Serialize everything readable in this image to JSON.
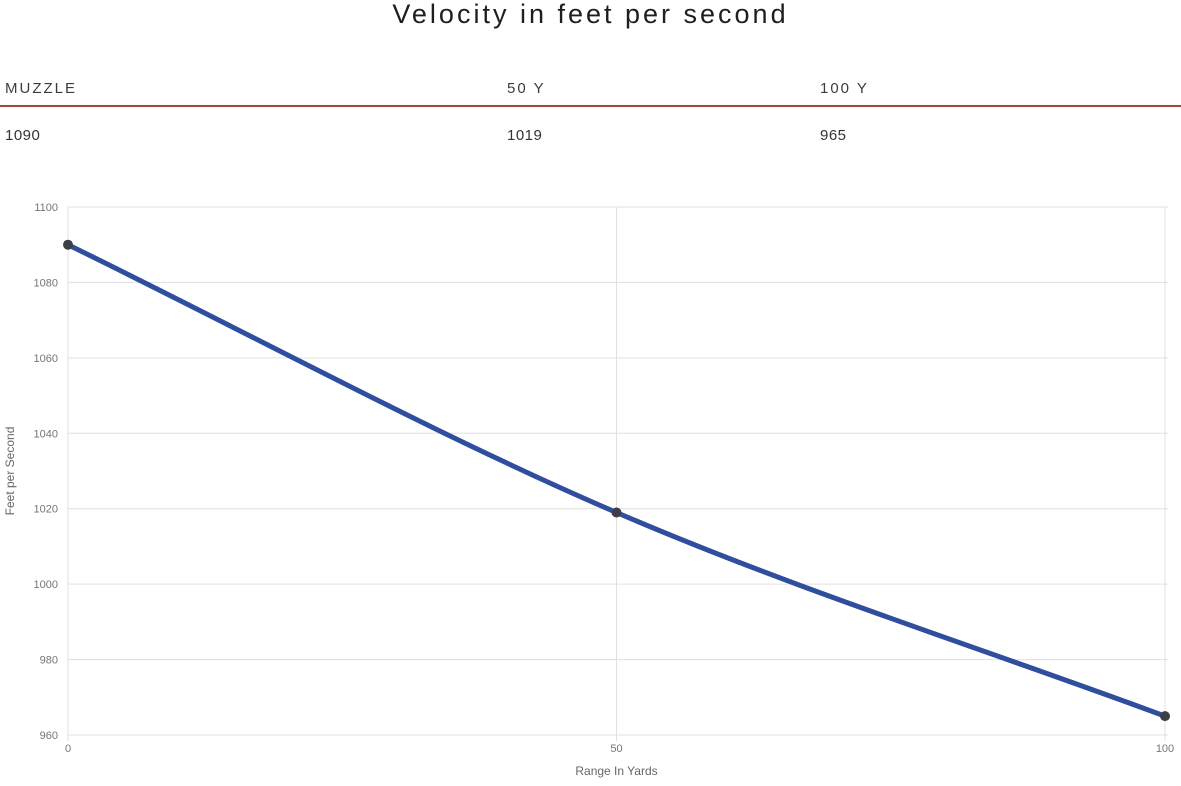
{
  "title": "Velocity in feet per second",
  "table": {
    "headers": [
      "MUZZLE",
      "50 Y",
      "100 Y"
    ],
    "values": [
      "1090",
      "1019",
      "965"
    ]
  },
  "chart_data": {
    "type": "line",
    "title": "Velocity in feet per second",
    "x": [
      0,
      50,
      100
    ],
    "series": [
      {
        "name": "Velocity",
        "values": [
          1090,
          1019,
          965
        ]
      }
    ],
    "xlabel": "Range In Yards",
    "ylabel": "Feet per Second",
    "xticks": [
      0,
      50,
      100
    ],
    "yticks": [
      960,
      980,
      1000,
      1020,
      1040,
      1060,
      1080,
      1100
    ],
    "xlim": [
      0,
      100
    ],
    "ylim": [
      960,
      1100
    ],
    "grid": true,
    "legend": "none",
    "line_color": "#2f4e9e",
    "marker_color": "#3b4045"
  },
  "colors": {
    "background": "#ffffff",
    "title_text": "#1e1e1e",
    "header_rule": "#a04a3a",
    "table_header_text": "#3c3c3c",
    "table_value_text": "#333333",
    "grid_line": "#e0e0e0",
    "tick_label": "#757575",
    "axis_title": "#666666"
  }
}
